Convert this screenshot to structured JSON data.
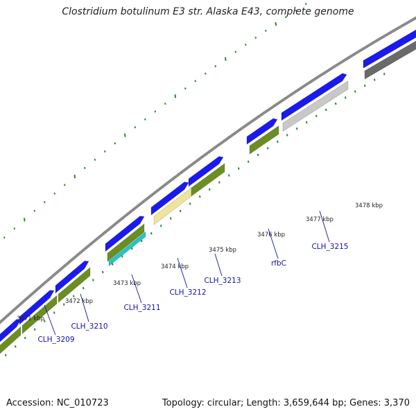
{
  "title": "Clostridium botulinum E3 str. Alaska E43, complete genome",
  "footer": {
    "accession": "Accession: NC_010723",
    "summary": "Topology: circular; Length: 3,659,644 bp; Genes: 3,370"
  },
  "colors": {
    "cds_forward": "#1a1aee",
    "cds_reverse": "#6b8e23",
    "gene_pale_yellow": "#efe59a",
    "gene_cyan": "#20c8c8",
    "gene_light_gray": "#c8c8c8",
    "gene_dark_gray": "#6a6a6a",
    "backbone": "#8a8a8a",
    "ticks": "#2a8a2a",
    "label": "#1010b0"
  },
  "kbp_labels": [
    "3471 kbp",
    "3472 kbp",
    "3473 kbp",
    "3474 kbp",
    "3475 kbp",
    "3476 kbp",
    "3477 kbp",
    "3478 kbp"
  ],
  "genes": [
    "CLH_3209",
    "CLH_3210",
    "CLH_3211",
    "CLH_3212",
    "CLH_3213",
    "rfbC",
    "CLH_3215"
  ]
}
